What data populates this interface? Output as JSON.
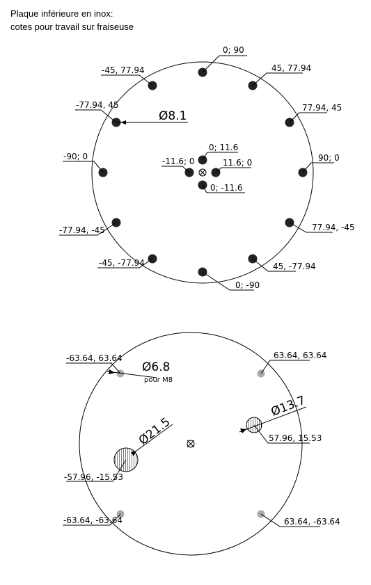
{
  "header": {
    "line1": "Plaque inférieure en inox:",
    "line2": "cotes pour travail sur fraiseuse"
  },
  "plate_top": {
    "holes": [
      {
        "label": "0; 90"
      },
      {
        "label": "45, 77.94"
      },
      {
        "label": "77.94, 45"
      },
      {
        "label": "90; 0"
      },
      {
        "label": "77.94, -45"
      },
      {
        "label": "45, -77.94"
      },
      {
        "label": "0; -90"
      },
      {
        "label": "-45, -77.94"
      },
      {
        "label": "-77.94, -45"
      },
      {
        "label": "-90; 0"
      },
      {
        "label": "-77.94, 45"
      },
      {
        "label": "-45, 77.94"
      }
    ],
    "center_holes": [
      {
        "label": "0; 11.6"
      },
      {
        "label": "11.6; 0"
      },
      {
        "label": "0; -11.6"
      },
      {
        "label": "-11.6; 0"
      }
    ],
    "diameter": "Ø8.1"
  },
  "plate_bottom": {
    "holes": [
      {
        "label": "-63.64, 63.64"
      },
      {
        "label": "63.64, 63.64"
      },
      {
        "label": "-63.64, -63.64"
      },
      {
        "label": "63.64, -63.64"
      }
    ],
    "diameter_small": "Ø6.8",
    "diameter_small_note": "pour M8",
    "large_hole_right": {
      "label": "57.96, 15.53",
      "diameter": "Ø13.7"
    },
    "large_hole_left": {
      "label": "-57.96, -15.53",
      "diameter": "Ø21.5"
    }
  }
}
